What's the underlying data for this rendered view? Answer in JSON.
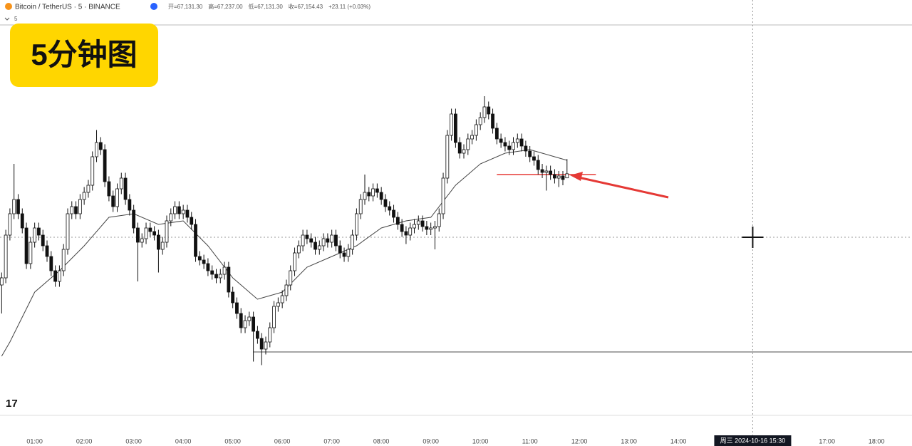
{
  "chart_data": {
    "type": "candlestick",
    "symbol": "Bitcoin / TetherUS · 5 · BINANCE",
    "interval": "5",
    "ohlc_text": [
      "开=67,131.30",
      "高=67,237.00",
      "低=67,131.30",
      "收=67,154.43",
      "+23.11 (+0.03%)"
    ],
    "badge": "5分钟图",
    "x": [
      "00:20",
      "00:25",
      "00:30",
      "00:35",
      "00:40",
      "00:45",
      "00:50",
      "00:55",
      "01:00",
      "01:05",
      "01:10",
      "01:15",
      "01:20",
      "01:25",
      "01:30",
      "01:35",
      "01:40",
      "01:45",
      "01:50",
      "01:55",
      "02:00",
      "02:05",
      "02:10",
      "02:15",
      "02:20",
      "02:25",
      "02:30",
      "02:35",
      "02:40",
      "02:45",
      "02:50",
      "02:55",
      "03:00",
      "03:05",
      "03:10",
      "03:15",
      "03:20",
      "03:25",
      "03:30",
      "03:35",
      "03:40",
      "03:45",
      "03:50",
      "03:55",
      "04:00",
      "04:05",
      "04:10",
      "04:15",
      "04:20",
      "04:25",
      "04:30",
      "04:35",
      "04:40",
      "04:45",
      "04:50",
      "04:55",
      "05:00",
      "05:05",
      "05:10",
      "05:15",
      "05:20",
      "05:25",
      "05:30",
      "05:35",
      "05:40",
      "05:45",
      "05:50",
      "05:55",
      "06:00",
      "06:05",
      "06:10",
      "06:15",
      "06:20",
      "06:25",
      "06:30",
      "06:35",
      "06:40",
      "06:45",
      "06:50",
      "06:55",
      "07:00",
      "07:05",
      "07:10",
      "07:15",
      "07:20",
      "07:25",
      "07:30",
      "07:35",
      "07:40",
      "07:45",
      "07:50",
      "07:55",
      "08:00",
      "08:05",
      "08:10",
      "08:15",
      "08:20",
      "08:25",
      "08:30",
      "08:35",
      "08:40",
      "08:45",
      "08:50",
      "08:55",
      "09:00",
      "09:05",
      "09:10",
      "09:15",
      "09:20",
      "09:25",
      "09:30",
      "09:35",
      "09:40",
      "09:45",
      "09:50",
      "09:55",
      "10:00",
      "10:05",
      "10:10",
      "10:15",
      "10:20",
      "10:25",
      "10:30",
      "10:35",
      "10:40",
      "10:45",
      "10:50",
      "10:55",
      "11:00",
      "11:05",
      "11:10",
      "11:15",
      "11:20",
      "11:25",
      "11:30",
      "11:35",
      "11:40",
      "11:45"
    ],
    "open": [
      66530,
      66570,
      66810,
      66930,
      67010,
      66930,
      66850,
      66650,
      66770,
      66850,
      66810,
      66750,
      66690,
      66610,
      66550,
      66610,
      66730,
      66930,
      66970,
      66930,
      67010,
      67050,
      67090,
      67250,
      67330,
      67290,
      67110,
      67030,
      66970,
      67070,
      67130,
      67010,
      66950,
      66850,
      66770,
      66790,
      66850,
      66830,
      66810,
      66730,
      66770,
      66890,
      66930,
      66970,
      66930,
      66950,
      66910,
      66870,
      66690,
      66670,
      66650,
      66610,
      66590,
      66570,
      66590,
      66630,
      66490,
      66430,
      66370,
      66290,
      66330,
      66350,
      66270,
      66230,
      66170,
      66210,
      66290,
      66410,
      66430,
      66470,
      66530,
      66610,
      66710,
      66750,
      66810,
      66790,
      66770,
      66730,
      66750,
      66790,
      66770,
      66810,
      66750,
      66710,
      66690,
      66730,
      66810,
      66930,
      67010,
      67050,
      67030,
      67070,
      67050,
      67010,
      66970,
      66950,
      66910,
      66870,
      66830,
      66810,
      66850,
      66870,
      66890,
      66858,
      66842,
      66850,
      66858,
      66930,
      67130,
      67370,
      67490,
      67330,
      67270,
      67290,
      67350,
      67370,
      67430,
      67470,
      67530,
      67490,
      67410,
      67350,
      67330,
      67310,
      67290,
      67330,
      67350,
      67310,
      67282,
      67250,
      67230,
      67178,
      67162,
      67170,
      67150,
      67130,
      67142,
      67131.3
    ],
    "high": [
      66600,
      66840,
      66960,
      67210,
      67040,
      66960,
      66880,
      66800,
      66880,
      66880,
      66840,
      66780,
      66720,
      66640,
      66640,
      66760,
      66960,
      67000,
      67000,
      67040,
      67080,
      67120,
      67280,
      67400,
      67360,
      67320,
      67140,
      67060,
      67100,
      67160,
      67160,
      67040,
      66980,
      66880,
      66820,
      66880,
      66880,
      66860,
      66840,
      66800,
      66920,
      66960,
      67000,
      67000,
      66980,
      66980,
      66940,
      66900,
      66720,
      66700,
      66680,
      66640,
      66620,
      66620,
      66660,
      66660,
      66520,
      66460,
      66400,
      66360,
      66380,
      66380,
      66300,
      66260,
      66240,
      66320,
      66440,
      66460,
      66500,
      66560,
      66640,
      66740,
      66780,
      66840,
      66840,
      66820,
      66800,
      66780,
      66820,
      66820,
      66840,
      66840,
      66780,
      66740,
      66760,
      66840,
      66960,
      67040,
      67150,
      67080,
      67100,
      67100,
      67080,
      67040,
      67000,
      66980,
      66940,
      66900,
      66860,
      66880,
      66900,
      66920,
      66920,
      66890,
      66880,
      66890,
      66960,
      67160,
      67400,
      67520,
      67520,
      67360,
      67320,
      67380,
      67400,
      67460,
      67500,
      67590,
      67560,
      67520,
      67440,
      67380,
      67360,
      67340,
      67360,
      67380,
      67380,
      67340,
      67310,
      67280,
      67260,
      67210,
      67200,
      67200,
      67180,
      67170,
      67170,
      67237
    ],
    "low": [
      66370,
      66540,
      66780,
      66900,
      66900,
      66820,
      66620,
      66620,
      66740,
      66780,
      66720,
      66660,
      66580,
      66520,
      66520,
      66580,
      66700,
      66900,
      66900,
      66900,
      66980,
      67020,
      67060,
      67220,
      67260,
      67080,
      67000,
      66940,
      66940,
      67040,
      66980,
      66920,
      66820,
      66550,
      66740,
      66760,
      66800,
      66780,
      66600,
      66700,
      66740,
      66860,
      66900,
      66900,
      66900,
      66880,
      66840,
      66660,
      66640,
      66620,
      66580,
      66560,
      66540,
      66540,
      66560,
      66460,
      66400,
      66340,
      66260,
      66260,
      66300,
      66100,
      66200,
      66080,
      66140,
      66180,
      66260,
      66380,
      66400,
      66440,
      66500,
      66580,
      66680,
      66720,
      66760,
      66740,
      66700,
      66700,
      66720,
      66740,
      66740,
      66720,
      66680,
      66660,
      66660,
      66700,
      66780,
      66900,
      66980,
      67000,
      67000,
      67020,
      66980,
      66940,
      66920,
      66880,
      66840,
      66800,
      66760,
      66780,
      66820,
      66840,
      66830,
      66810,
      66810,
      66730,
      66830,
      66900,
      67100,
      67340,
      67300,
      67240,
      67240,
      67260,
      67320,
      67340,
      67400,
      67440,
      67460,
      67380,
      67320,
      67300,
      67280,
      67260,
      67260,
      67300,
      67280,
      67250,
      67220,
      67200,
      67150,
      67130,
      67060,
      67120,
      67100,
      67080,
      67090,
      67131.3
    ],
    "close": [
      66570,
      66810,
      66930,
      67010,
      66930,
      66850,
      66650,
      66770,
      66850,
      66810,
      66750,
      66690,
      66610,
      66550,
      66610,
      66730,
      66930,
      66970,
      66930,
      67010,
      67050,
      67090,
      67250,
      67330,
      67290,
      67110,
      67030,
      66970,
      67070,
      67130,
      67010,
      66950,
      66850,
      66770,
      66790,
      66850,
      66830,
      66810,
      66730,
      66770,
      66890,
      66930,
      66970,
      66930,
      66950,
      66910,
      66870,
      66690,
      66670,
      66650,
      66610,
      66590,
      66570,
      66590,
      66630,
      66490,
      66430,
      66370,
      66290,
      66330,
      66350,
      66270,
      66230,
      66170,
      66210,
      66290,
      66410,
      66430,
      66470,
      66530,
      66610,
      66710,
      66750,
      66810,
      66790,
      66770,
      66730,
      66750,
      66790,
      66770,
      66810,
      66750,
      66710,
      66690,
      66730,
      66810,
      66930,
      67010,
      67050,
      67030,
      67070,
      67050,
      67010,
      66970,
      66950,
      66910,
      66870,
      66830,
      66810,
      66850,
      66870,
      66890,
      66858,
      66842,
      66850,
      66858,
      66930,
      67130,
      67370,
      67490,
      67330,
      67270,
      67290,
      67350,
      67370,
      67430,
      67470,
      67530,
      67490,
      67410,
      67350,
      67330,
      67310,
      67290,
      67330,
      67350,
      67310,
      67282,
      67250,
      67230,
      67178,
      67162,
      67170,
      67150,
      67130,
      67142,
      67122,
      67154.43
    ],
    "bull_color": "#ffffff",
    "bear_color": "#111111",
    "ma": {
      "color": "#444444",
      "x": [
        "00:20",
        "00:30",
        "01:00",
        "01:30",
        "02:00",
        "02:30",
        "03:00",
        "03:30",
        "04:00",
        "04:30",
        "05:00",
        "05:30",
        "06:00",
        "06:30",
        "07:00",
        "07:30",
        "08:00",
        "08:30",
        "09:00",
        "09:30",
        "10:00",
        "10:30",
        "11:00",
        "11:30",
        "11:45"
      ],
      "values": [
        66130,
        66210,
        66490,
        66610,
        66750,
        66910,
        66930,
        66870,
        66890,
        66750,
        66570,
        66450,
        66490,
        66630,
        66690,
        66750,
        66850,
        66890,
        66910,
        67090,
        67210,
        67270,
        67290,
        67250,
        67230
      ]
    },
    "hlines": [
      {
        "value": 67150,
        "color": "#e53935",
        "from": "10:20",
        "to": "12:20"
      },
      {
        "value": 66154,
        "color": "#888888",
        "from": "05:25"
      }
    ],
    "crosshair": {
      "time": "15:30",
      "value": 66798,
      "label": "周三 2024-10-16  15:30"
    },
    "xlim": [
      "00:18",
      "18:43"
    ],
    "ylim": [
      65798,
      67990
    ],
    "xticks": [
      "01:00",
      "02:00",
      "03:00",
      "04:00",
      "05:00",
      "06:00",
      "07:00",
      "08:00",
      "09:00",
      "10:00",
      "11:00",
      "12:00",
      "13:00",
      "14:00",
      "17:00",
      "18:00"
    ]
  }
}
